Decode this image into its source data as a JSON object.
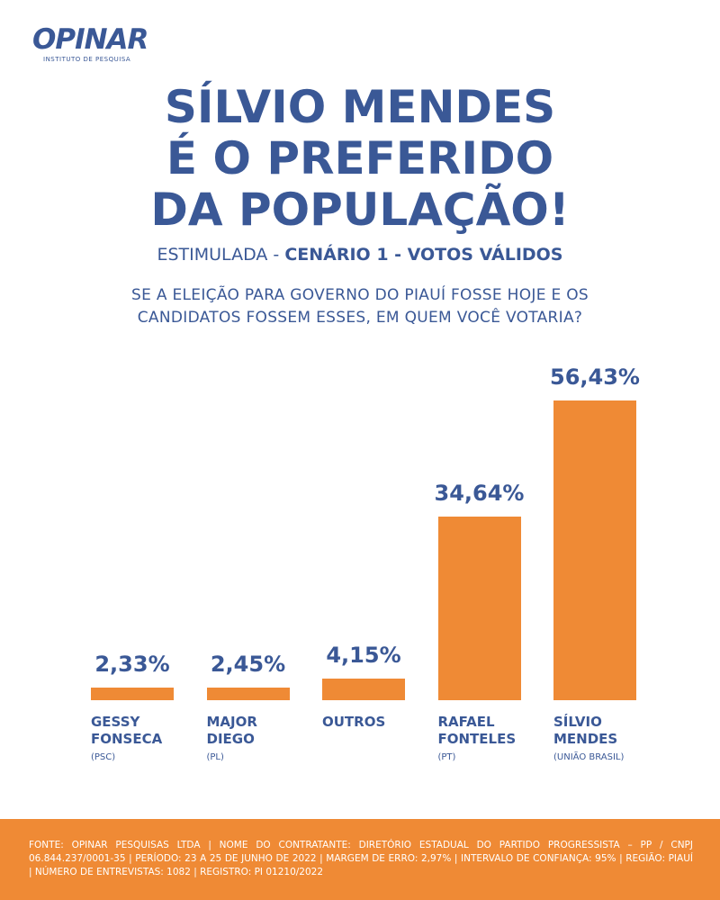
{
  "logo": {
    "name": "OPINAR",
    "tagline": "INSTITUTO DE PESQUISA"
  },
  "chart_data": {
    "type": "bar",
    "title": [
      "SÍLVIO MENDES",
      "É O PREFERIDO",
      "DA POPULAÇÃO!"
    ],
    "subtitle": {
      "prefix": "ESTIMULADA -",
      "emphasis": "CENÁRIO 1 - VOTOS VÁLIDOS"
    },
    "question": [
      "SE A ELEIÇÃO PARA GOVERNO DO PIAUÍ FOSSE HOJE E OS",
      "CANDIDATOS FOSSEM ESSES, EM QUEM VOCÊ VOTARIA?"
    ],
    "categories": [
      "GESSY FONSECA",
      "MAJOR DIEGO",
      "OUTROS",
      "RAFAEL FONTELES",
      "SÍLVIO MENDES"
    ],
    "parties": [
      "(PSC)",
      "(PL)",
      null,
      "(PT)",
      "(UNIÃO BRASIL)"
    ],
    "values": [
      2.33,
      2.45,
      4.15,
      34.64,
      56.43
    ],
    "value_labels": [
      "2,33%",
      "2,45%",
      "4,15%",
      "34,64%",
      "56,43%"
    ],
    "color": "#ef8a35"
  },
  "footer": "FONTE: OPINAR PESQUISAS LTDA | NOME DO CONTRATANTE: DIRETÓRIO ESTADUAL DO PARTIDO PROGRESSISTA – PP / CNPJ 06.844.237/0001-35 | PERÍODO: 23 A 25 DE JUNHO DE 2022 | MARGEM DE ERRO: 2,97% | INTERVALO DE CONFIANÇA: 95% | REGIÃO: PIAUÍ | NÚMERO DE ENTREVISTAS: 1082 | REGISTRO: PI 01210/2022"
}
